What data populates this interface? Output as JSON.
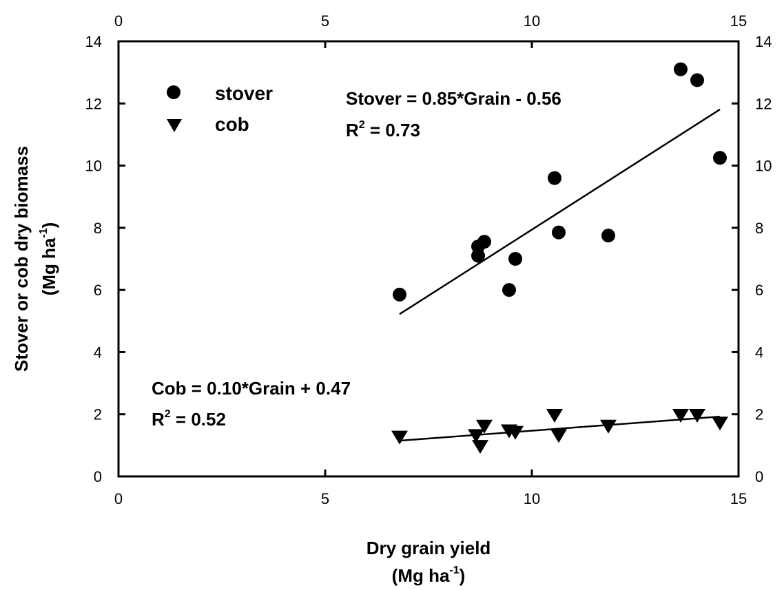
{
  "chart_data": {
    "type": "scatter",
    "xlabel": "Dry grain yield",
    "xunit": "(Mg ha",
    "xunit_sup": "-1",
    "xunit_end": ")",
    "ylabel": "Stover or cob dry biomass",
    "yunit": "(Mg ha",
    "yunit_sup": "-1",
    "yunit_end": ")",
    "xlim": [
      0,
      15
    ],
    "ylim": [
      0,
      14
    ],
    "xticks": [
      0,
      5,
      10,
      15
    ],
    "yticks": [
      0,
      2,
      4,
      6,
      8,
      10,
      12,
      14
    ],
    "grid": false,
    "legend_placement": "top-left",
    "series": [
      {
        "name": "stover",
        "marker": "circle",
        "x": [
          6.8,
          8.7,
          8.7,
          8.85,
          9.45,
          9.6,
          10.55,
          10.65,
          11.85,
          13.6,
          14.0,
          14.55
        ],
        "y": [
          5.85,
          7.4,
          7.1,
          7.55,
          6.0,
          7.0,
          9.6,
          7.85,
          7.75,
          13.1,
          12.75,
          10.25
        ]
      },
      {
        "name": "cob",
        "marker": "triangle-down",
        "x": [
          6.8,
          8.65,
          8.75,
          8.85,
          9.45,
          9.6,
          10.55,
          10.65,
          11.85,
          13.6,
          14.0,
          14.55
        ],
        "y": [
          1.25,
          1.3,
          0.95,
          1.6,
          1.45,
          1.4,
          1.95,
          1.3,
          1.6,
          1.95,
          1.95,
          1.7
        ]
      }
    ],
    "fits": [
      {
        "series": "stover",
        "slope": 0.85,
        "intercept": -0.56,
        "x_range": [
          6.8,
          14.55
        ]
      },
      {
        "series": "cob",
        "slope": 0.1,
        "intercept": 0.47,
        "x_range": [
          6.8,
          14.55
        ]
      }
    ],
    "annotations": {
      "stover_eq": "Stover = 0.85*Grain - 0.56",
      "stover_r2_pre": "R",
      "stover_r2_sup": "2",
      "stover_r2_post": " = 0.73",
      "cob_eq": "Cob = 0.10*Grain + 0.47",
      "cob_r2_pre": "R",
      "cob_r2_sup": "2",
      "cob_r2_post": " = 0.52"
    }
  }
}
